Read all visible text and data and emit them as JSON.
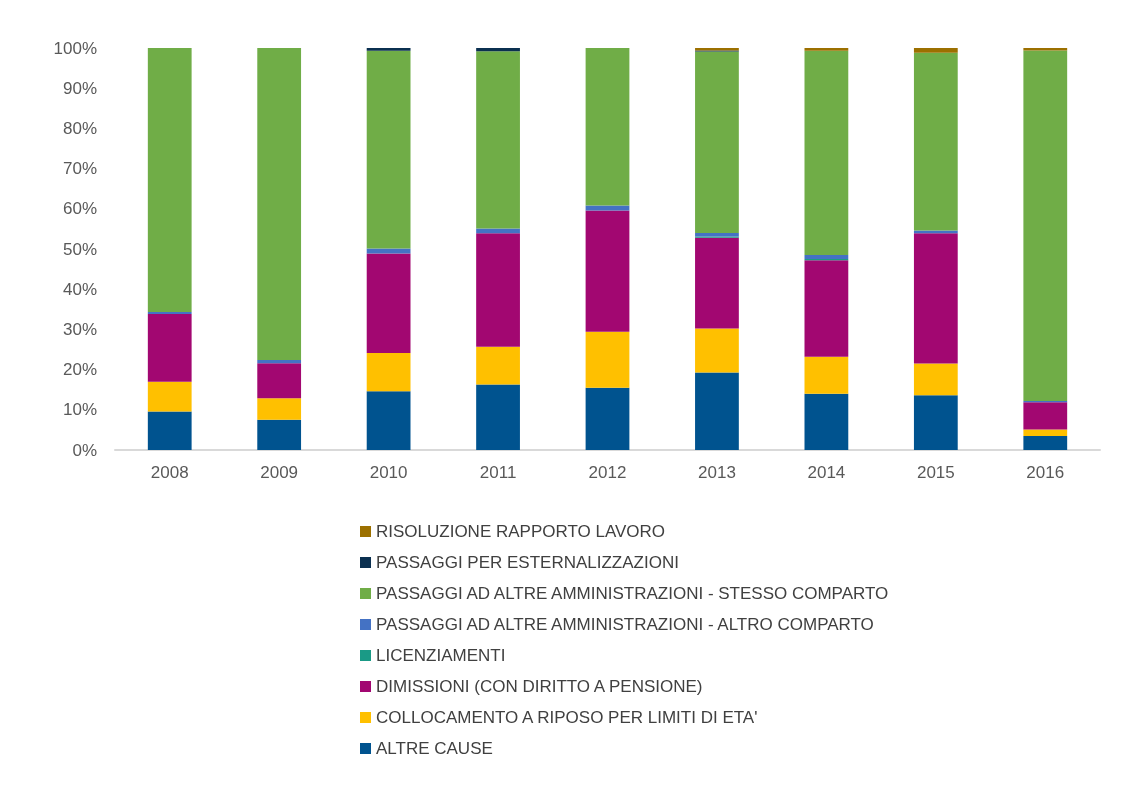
{
  "chart_data": {
    "type": "bar",
    "stacked": true,
    "categories": [
      "2008",
      "2009",
      "2010",
      "2011",
      "2012",
      "2013",
      "2014",
      "2015",
      "2016"
    ],
    "ylim": [
      0,
      100
    ],
    "yticks": [
      {
        "value": 0,
        "label": "0%"
      },
      {
        "value": 10,
        "label": "10%"
      },
      {
        "value": 20,
        "label": "20%"
      },
      {
        "value": 30,
        "label": "30%"
      },
      {
        "value": 40,
        "label": "40%"
      },
      {
        "value": 50,
        "label": "50%"
      },
      {
        "value": 60,
        "label": "60%"
      },
      {
        "value": 70,
        "label": "70%"
      },
      {
        "value": 80,
        "label": "80%"
      },
      {
        "value": 90,
        "label": "90%"
      },
      {
        "value": 100,
        "label": "100%"
      }
    ],
    "grid": false,
    "legend": "bottom",
    "series": [
      {
        "name": "ALTRE CAUSE",
        "color": "#00538f",
        "values": [
          9.6,
          7.5,
          14.6,
          16.3,
          15.5,
          19.3,
          14.0,
          13.6,
          3.5
        ]
      },
      {
        "name": "COLLOCAMENTO A RIPOSO PER LIMITI DI ETA'",
        "color": "#ffc000",
        "values": [
          7.4,
          5.4,
          9.5,
          9.4,
          13.9,
          10.9,
          9.2,
          7.9,
          1.6
        ]
      },
      {
        "name": "DIMISSIONI (CON DIRITTO A PENSIONE)",
        "color": "#a20771",
        "values": [
          16.8,
          8.7,
          24.8,
          28.2,
          30.2,
          22.6,
          24.0,
          32.4,
          6.8
        ]
      },
      {
        "name": "LICENZIAMENTI",
        "color": "#1a9a86",
        "values": [
          0,
          0,
          0,
          0,
          0,
          0.3,
          0.3,
          0,
          0
        ]
      },
      {
        "name": "PASSAGGI AD ALTRE AMMINISTRAZIONI - ALTRO COMPARTO",
        "color": "#4472c4",
        "values": [
          0.5,
          0.8,
          1.2,
          1.2,
          1.2,
          0.9,
          1.0,
          0.7,
          0.3
        ]
      },
      {
        "name": "PASSAGGI AD ALTRE AMMINISTRAZIONI - STESSO COMPARTO",
        "color": "#70ad47",
        "values": [
          65.7,
          77.6,
          49.2,
          44.1,
          39.2,
          45.1,
          50.8,
          44.2,
          87.2
        ]
      },
      {
        "name": "PASSAGGI PER ESTERNALIZZAZIONI",
        "color": "#0b3050",
        "values": [
          0,
          0,
          0.7,
          0.8,
          0,
          0.3,
          0,
          0,
          0
        ]
      },
      {
        "name": "RISOLUZIONE RAPPORTO LAVORO",
        "color": "#9c7000",
        "values": [
          0,
          0,
          0,
          0,
          0,
          0.6,
          0.7,
          1.2,
          0.6
        ]
      }
    ]
  }
}
